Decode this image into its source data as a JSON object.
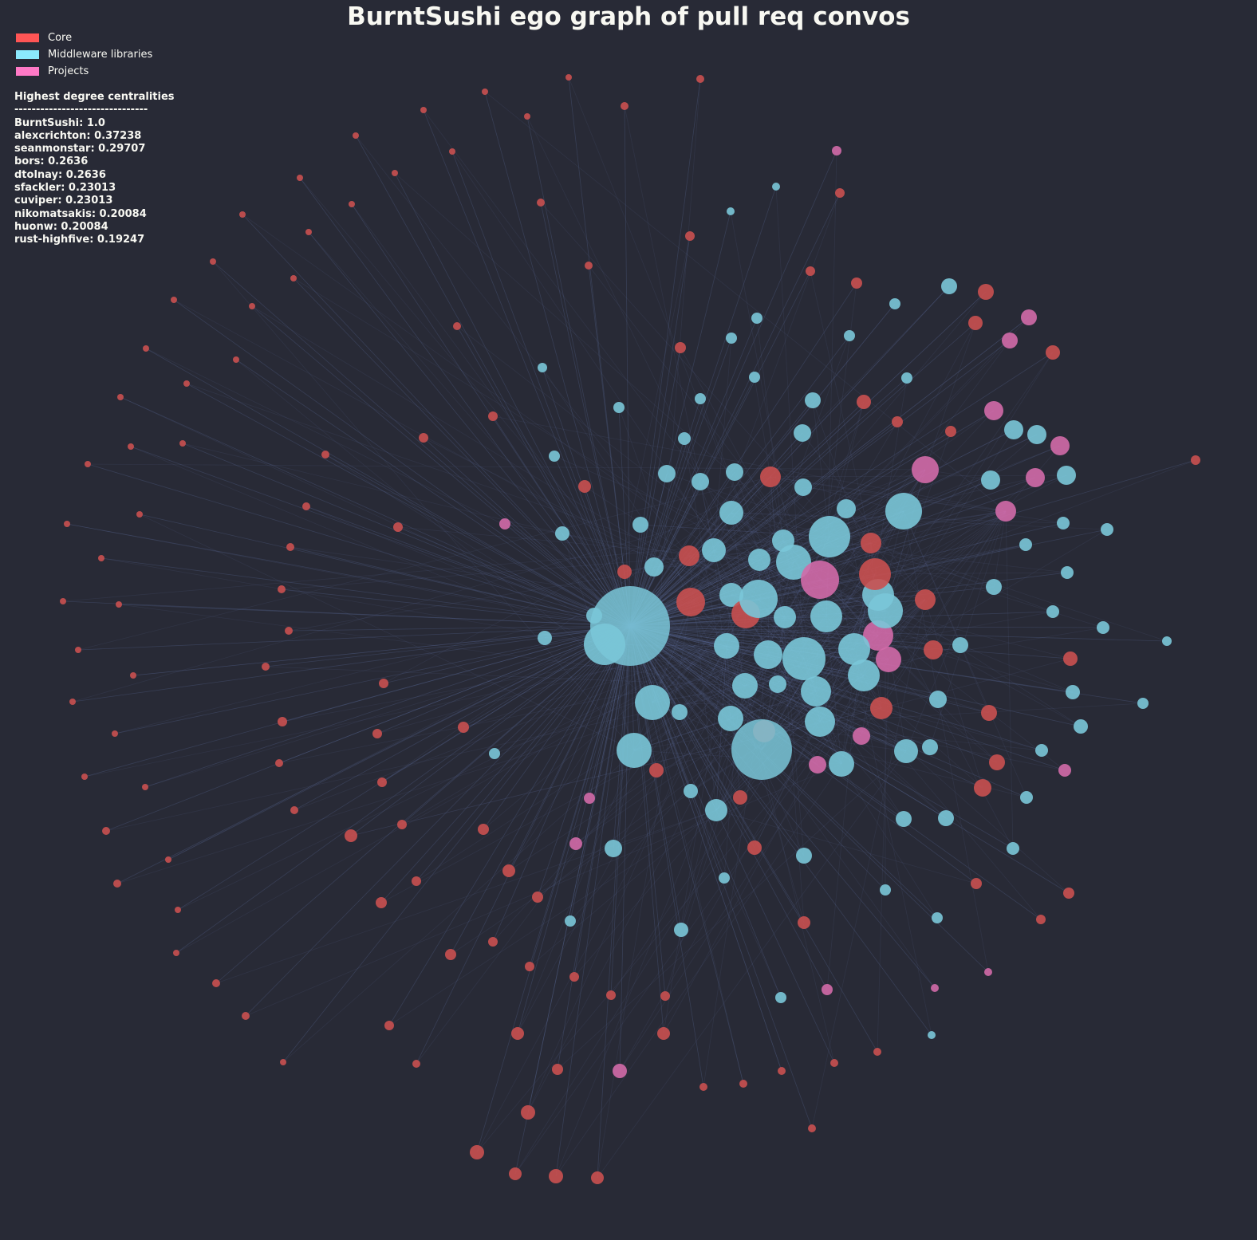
{
  "title": "BurntSushi ego graph of pull req convos",
  "colors": {
    "background": "#282a36",
    "edge": "#6272a4",
    "core": "#ff5555",
    "middleware": "#8be9fd",
    "projects": "#ff79c6"
  },
  "legend": [
    {
      "label": "Core",
      "color": "#ff5555"
    },
    {
      "label": "Middleware libraries",
      "color": "#8be9fd"
    },
    {
      "label": "Projects",
      "color": "#ff79c6"
    }
  ],
  "centrality": {
    "heading": "Highest degree centralities",
    "separator": "-------------------------------",
    "entries": [
      "BurntSushi: 1.0",
      "alexcrichton: 0.37238",
      "seanmonstar: 0.29707",
      "bors: 0.2636",
      "dtolnay: 0.2636",
      "sfackler: 0.23013",
      "cuviper: 0.23013",
      "nikomatsakis: 0.20084",
      "huonw: 0.20084",
      "rust-highfive: 0.19247"
    ]
  }
}
